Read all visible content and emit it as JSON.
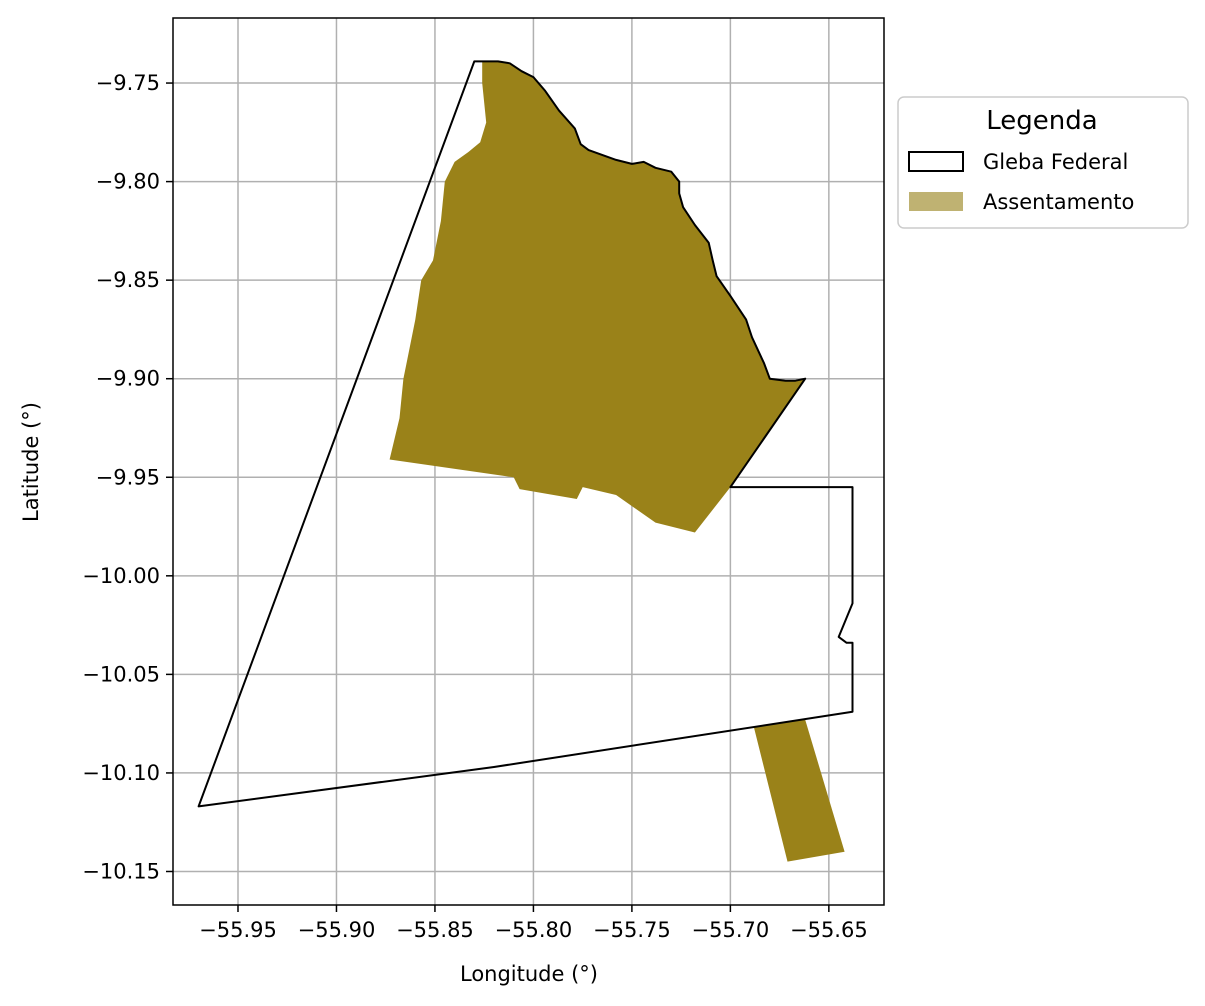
{
  "chart_data": {
    "type": "map",
    "xlabel": "Longitude (°)",
    "ylabel": "Latitude (°)",
    "xlim": [
      -55.983,
      -55.622
    ],
    "ylim": [
      -10.167,
      -9.717
    ],
    "grid": true,
    "x_ticks": [
      {
        "value": -55.95,
        "label": "−55.95"
      },
      {
        "value": -55.9,
        "label": "−55.90"
      },
      {
        "value": -55.85,
        "label": "−55.85"
      },
      {
        "value": -55.8,
        "label": "−55.80"
      },
      {
        "value": -55.75,
        "label": "−55.75"
      },
      {
        "value": -55.7,
        "label": "−55.70"
      },
      {
        "value": -55.65,
        "label": "−55.65"
      }
    ],
    "y_ticks": [
      {
        "value": -9.75,
        "label": "−9.75"
      },
      {
        "value": -9.8,
        "label": "−9.80"
      },
      {
        "value": -9.85,
        "label": "−9.85"
      },
      {
        "value": -9.9,
        "label": "−9.90"
      },
      {
        "value": -9.95,
        "label": "−9.95"
      },
      {
        "value": -10.0,
        "label": "−10.00"
      },
      {
        "value": -10.05,
        "label": "−10.05"
      },
      {
        "value": -10.1,
        "label": "−10.10"
      },
      {
        "value": -10.15,
        "label": "−10.15"
      }
    ],
    "legend": {
      "title": "Legenda",
      "placement": "outside-top-right",
      "entries": [
        {
          "key": "gleba",
          "label": "Gleba Federal"
        },
        {
          "key": "assentamento",
          "label": "Assentamento"
        }
      ]
    },
    "colors": {
      "assentamento_fill": "#9a8219",
      "assentamento_legend": "#bfb272",
      "gleba_edge": "#000000",
      "grid": "#b0b0b0"
    },
    "layers": [
      {
        "key": "assentamento",
        "style": "fill",
        "polygons": [
          [
            [
              -55.826,
              -9.739
            ],
            [
              -55.818,
              -9.739
            ],
            [
              -55.812,
              -9.74
            ],
            [
              -55.806,
              -9.744
            ],
            [
              -55.8,
              -9.747
            ],
            [
              -55.794,
              -9.754
            ],
            [
              -55.787,
              -9.764
            ],
            [
              -55.779,
              -9.773
            ],
            [
              -55.776,
              -9.781
            ],
            [
              -55.772,
              -9.784
            ],
            [
              -55.758,
              -9.789
            ],
            [
              -55.75,
              -9.791
            ],
            [
              -55.744,
              -9.79
            ],
            [
              -55.738,
              -9.793
            ],
            [
              -55.73,
              -9.795
            ],
            [
              -55.726,
              -9.8
            ],
            [
              -55.726,
              -9.806
            ],
            [
              -55.724,
              -9.813
            ],
            [
              -55.718,
              -9.822
            ],
            [
              -55.711,
              -9.831
            ],
            [
              -55.709,
              -9.84
            ],
            [
              -55.707,
              -9.848
            ],
            [
              -55.7,
              -9.858
            ],
            [
              -55.692,
              -9.87
            ],
            [
              -55.689,
              -9.879
            ],
            [
              -55.683,
              -9.892
            ],
            [
              -55.68,
              -9.9
            ],
            [
              -55.672,
              -9.901
            ],
            [
              -55.667,
              -9.901
            ],
            [
              -55.662,
              -9.9
            ],
            [
              -55.7,
              -9.955
            ],
            [
              -55.718,
              -9.978
            ],
            [
              -55.738,
              -9.973
            ],
            [
              -55.758,
              -9.959
            ],
            [
              -55.775,
              -9.955
            ],
            [
              -55.778,
              -9.961
            ],
            [
              -55.807,
              -9.956
            ],
            [
              -55.81,
              -9.95
            ],
            [
              -55.873,
              -9.941
            ],
            [
              -55.868,
              -9.92
            ],
            [
              -55.866,
              -9.9
            ],
            [
              -55.864,
              -9.89
            ],
            [
              -55.86,
              -9.87
            ],
            [
              -55.857,
              -9.85
            ],
            [
              -55.851,
              -9.84
            ],
            [
              -55.847,
              -9.82
            ],
            [
              -55.845,
              -9.8
            ],
            [
              -55.84,
              -9.79
            ],
            [
              -55.833,
              -9.785
            ],
            [
              -55.827,
              -9.78
            ],
            [
              -55.824,
              -9.77
            ],
            [
              -55.826,
              -9.75
            ]
          ],
          [
            [
              -55.688,
              -10.077
            ],
            [
              -55.662,
              -10.073
            ],
            [
              -55.642,
              -10.14
            ],
            [
              -55.671,
              -10.145
            ]
          ]
        ]
      },
      {
        "key": "gleba",
        "style": "outline",
        "polygons": [
          [
            [
              -55.83,
              -9.739
            ],
            [
              -55.826,
              -9.739
            ],
            [
              -55.818,
              -9.739
            ],
            [
              -55.812,
              -9.74
            ],
            [
              -55.806,
              -9.744
            ],
            [
              -55.8,
              -9.747
            ],
            [
              -55.794,
              -9.754
            ],
            [
              -55.787,
              -9.764
            ],
            [
              -55.779,
              -9.773
            ],
            [
              -55.776,
              -9.781
            ],
            [
              -55.772,
              -9.784
            ],
            [
              -55.758,
              -9.789
            ],
            [
              -55.75,
              -9.791
            ],
            [
              -55.744,
              -9.79
            ],
            [
              -55.738,
              -9.793
            ],
            [
              -55.73,
              -9.795
            ],
            [
              -55.726,
              -9.8
            ],
            [
              -55.726,
              -9.806
            ],
            [
              -55.724,
              -9.813
            ],
            [
              -55.718,
              -9.822
            ],
            [
              -55.711,
              -9.831
            ],
            [
              -55.709,
              -9.84
            ],
            [
              -55.707,
              -9.848
            ],
            [
              -55.7,
              -9.858
            ],
            [
              -55.692,
              -9.87
            ],
            [
              -55.689,
              -9.879
            ],
            [
              -55.683,
              -9.892
            ],
            [
              -55.68,
              -9.9
            ],
            [
              -55.672,
              -9.901
            ],
            [
              -55.667,
              -9.901
            ],
            [
              -55.662,
              -9.9
            ],
            [
              -55.7,
              -9.955
            ],
            [
              -55.638,
              -9.955
            ],
            [
              -55.638,
              -10.014
            ],
            [
              -55.645,
              -10.031
            ],
            [
              -55.641,
              -10.034
            ],
            [
              -55.638,
              -10.034
            ],
            [
              -55.638,
              -10.069
            ],
            [
              -55.82,
              -10.097
            ],
            [
              -55.97,
              -10.117
            ]
          ]
        ]
      }
    ]
  }
}
